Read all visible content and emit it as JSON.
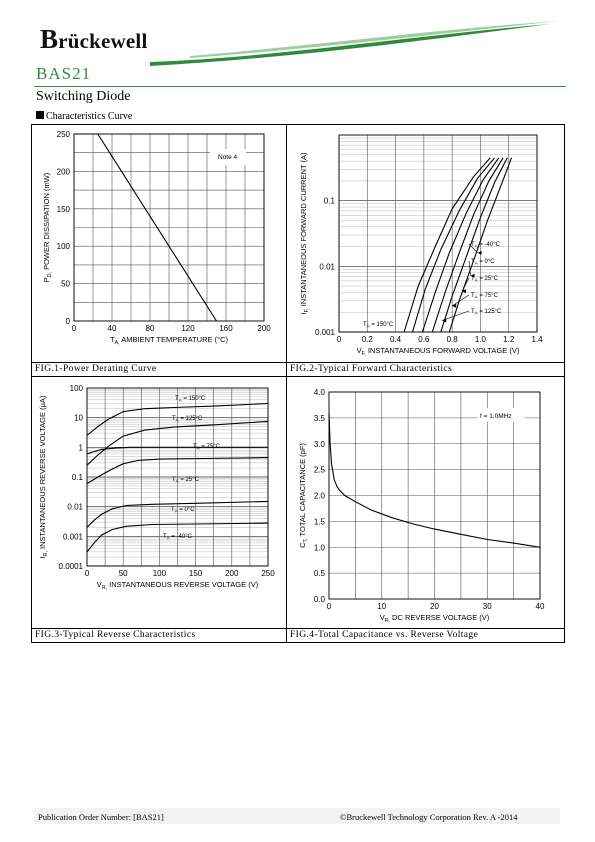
{
  "header": {
    "logo_initial": "B",
    "logo_rest": "rückewell",
    "product": "BAS21",
    "subtitle": "Switching Diode",
    "section_title": "Characteristics Curve"
  },
  "colors": {
    "brand_green": "#2f8a3e",
    "ink": "#000000"
  },
  "captions": {
    "fig1": "FIG.1-Power Derating Curve",
    "fig2": "FIG.2-Typical Forward Characteristics",
    "fig3": "FIG.3-Typical Reverse Characteristics",
    "fig4": "FIG.4-Total Capacitance vs. Reverse Voltage"
  },
  "footer": {
    "left": "Publication Order Number: [BAS21]",
    "right": "©Bruckewell Technology Corporation Rev. A -2014"
  },
  "chart_data": [
    {
      "id": "fig1",
      "type": "line",
      "xlabel": "TA, AMBIENT TEMPERATURE (°C)",
      "ylabel": "PD, POWER DISSIPATION (mW)",
      "xlim": [
        0,
        200
      ],
      "ylim": [
        0,
        250
      ],
      "xticks": [
        0,
        40,
        80,
        120,
        160,
        200
      ],
      "yticks": [
        0,
        50,
        100,
        150,
        200,
        250
      ],
      "grid": true,
      "annotation": "Note 4",
      "series": [
        {
          "x": [
            0,
            25,
            150
          ],
          "y": [
            250,
            250,
            0
          ]
        }
      ]
    },
    {
      "id": "fig2",
      "type": "line",
      "scale_y": "log",
      "xlabel": "VF, INSTANTANEOUS FORWARD VOLTAGE (V)",
      "ylabel": "IF, INSTANTANEOUS FORWARD CURRENT (A)",
      "xlim": [
        0,
        1.4
      ],
      "ylim": [
        0.001,
        1
      ],
      "xticks": [
        0,
        0.2,
        0.4,
        0.6,
        0.8,
        1.0,
        1.2,
        1.4
      ],
      "xtick_labels": [
        "0",
        "0.2",
        "0.4",
        "0.6",
        "0.8",
        "1.0",
        "1.2",
        "1.4"
      ],
      "yticks": [
        0.001,
        0.01,
        0.1
      ],
      "ytick_labels": [
        "0.001",
        "0.01",
        "0.1"
      ],
      "grid": true,
      "series": [
        {
          "name": "TA = -40°C",
          "x": [
            0.78,
            0.85,
            0.95,
            1.05,
            1.15,
            1.22
          ],
          "y": [
            0.001,
            0.003,
            0.012,
            0.05,
            0.18,
            0.45
          ]
        },
        {
          "name": "TA = 0°C",
          "x": [
            0.72,
            0.8,
            0.9,
            1.0,
            1.1,
            1.19
          ],
          "y": [
            0.001,
            0.0035,
            0.014,
            0.055,
            0.19,
            0.45
          ]
        },
        {
          "name": "TA = 25°C",
          "x": [
            0.66,
            0.75,
            0.85,
            0.95,
            1.06,
            1.16
          ],
          "y": [
            0.001,
            0.004,
            0.016,
            0.06,
            0.2,
            0.45
          ]
        },
        {
          "name": "TA = 75°C",
          "x": [
            0.59,
            0.68,
            0.78,
            0.9,
            1.02,
            1.13
          ],
          "y": [
            0.001,
            0.004,
            0.016,
            0.065,
            0.21,
            0.45
          ]
        },
        {
          "name": "TA = 125°C",
          "x": [
            0.52,
            0.61,
            0.72,
            0.85,
            0.98,
            1.1
          ],
          "y": [
            0.001,
            0.0045,
            0.018,
            0.07,
            0.22,
            0.45
          ]
        },
        {
          "name": "TA = 150°C",
          "x": [
            0.46,
            0.56,
            0.68,
            0.8,
            0.95,
            1.07
          ],
          "y": [
            0.001,
            0.005,
            0.02,
            0.075,
            0.23,
            0.45
          ]
        }
      ]
    },
    {
      "id": "fig3",
      "type": "line",
      "scale_y": "log",
      "xlabel": "VR, INSTANTANEOUS REVERSE VOLTAGE (V)",
      "ylabel": "IR, INSTANTANEOUS REVERSE VOLTAGE (µA)",
      "xlim": [
        0,
        250
      ],
      "ylim": [
        0.0001,
        100
      ],
      "xticks": [
        0,
        50,
        100,
        150,
        200,
        250
      ],
      "yticks": [
        0.0001,
        0.001,
        0.01,
        0.1,
        1,
        10,
        100
      ],
      "ytick_labels": [
        "0.0001",
        "0.001",
        "0.01",
        "0.1",
        "1",
        "10",
        "100"
      ],
      "grid": true,
      "series": [
        {
          "name": "TA = 150°C",
          "x": [
            0,
            15,
            30,
            50,
            80,
            120,
            180,
            250
          ],
          "y": [
            2.5,
            5,
            9,
            16,
            20,
            22,
            25,
            30
          ]
        },
        {
          "name": "TA = 125°C",
          "x": [
            0,
            15,
            30,
            50,
            80,
            120,
            180,
            250
          ],
          "y": [
            0.25,
            0.55,
            1.1,
            2.4,
            3.8,
            4.8,
            5.8,
            7.5
          ]
        },
        {
          "name": "TA = 75°C",
          "x": [
            0,
            20,
            40,
            60,
            90,
            130,
            190,
            250
          ],
          "y": [
            0.6,
            0.85,
            0.95,
            1.0,
            1.0,
            1.0,
            1.0,
            1.0
          ]
        },
        {
          "name": "TA = 25°C",
          "x": [
            0,
            15,
            30,
            50,
            70,
            100,
            160,
            250
          ],
          "y": [
            0.06,
            0.1,
            0.16,
            0.28,
            0.36,
            0.4,
            0.42,
            0.45
          ]
        },
        {
          "name": "TA = 0°C",
          "x": [
            0,
            10,
            20,
            35,
            55,
            90,
            150,
            250
          ],
          "y": [
            0.002,
            0.0035,
            0.0055,
            0.0085,
            0.011,
            0.012,
            0.013,
            0.015
          ]
        },
        {
          "name": "TA = -40°C",
          "x": [
            0,
            10,
            20,
            35,
            55,
            90,
            150,
            250
          ],
          "y": [
            0.0003,
            0.0006,
            0.0011,
            0.0017,
            0.0022,
            0.0025,
            0.0026,
            0.0028
          ]
        }
      ]
    },
    {
      "id": "fig4",
      "type": "line",
      "xlabel": "VR, DC REVERSE VOLTAGE (V)",
      "ylabel": "CT, TOTAL CAPACITANCE (pF)",
      "xlim": [
        0,
        40
      ],
      "ylim": [
        0,
        4
      ],
      "xticks": [
        0,
        10,
        20,
        30,
        40
      ],
      "yticks": [
        0,
        0.5,
        1,
        1.5,
        2,
        2.5,
        3,
        3.5,
        4
      ],
      "ytick_labels": [
        "0.0",
        "0.5",
        "1.0",
        "1.5",
        "2.0",
        "2.5",
        "3.0",
        "3.5",
        "4.0"
      ],
      "grid": true,
      "annotation": "f = 1.0MHz",
      "series": [
        {
          "x": [
            0,
            0.2,
            0.5,
            1,
            1.5,
            2,
            3,
            5,
            8,
            12,
            16,
            20,
            25,
            30,
            35,
            40
          ],
          "y": [
            3.6,
            3.0,
            2.6,
            2.3,
            2.18,
            2.1,
            2.0,
            1.88,
            1.72,
            1.57,
            1.45,
            1.35,
            1.25,
            1.15,
            1.08,
            1.0
          ]
        }
      ]
    }
  ]
}
